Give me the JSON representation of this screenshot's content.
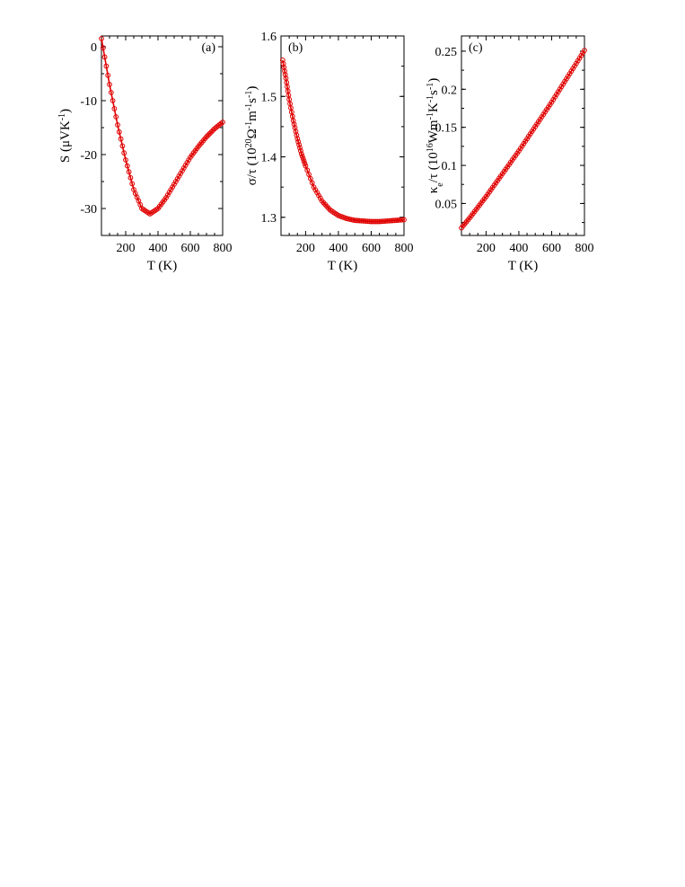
{
  "chart_data": [
    {
      "type": "line",
      "panel_label": "(a)",
      "xlabel": "T (K)",
      "ylabel": {
        "base": "S (μVK",
        "sup": "-1",
        "end": ")"
      },
      "xlim": [
        50,
        800
      ],
      "ylim": [
        -35,
        2
      ],
      "xticks": [
        200,
        400,
        600,
        800
      ],
      "yticks": [
        0,
        -10,
        -20,
        -30
      ],
      "ytick_labels": [
        "0",
        "-10",
        "-20",
        "-30"
      ],
      "series_color": "#e00000",
      "x": [
        50,
        100,
        150,
        200,
        250,
        300,
        350,
        400,
        450,
        500,
        550,
        600,
        650,
        700,
        750,
        800
      ],
      "y": [
        1.5,
        -7.0,
        -14.5,
        -21.0,
        -26.5,
        -30.0,
        -31.0,
        -30.0,
        -28.0,
        -25.5,
        -23.0,
        -20.5,
        -18.5,
        -16.7,
        -15.2,
        -14.0
      ]
    },
    {
      "type": "line",
      "panel_label": "(b)",
      "xlabel": "T (K)",
      "ylabel": {
        "base": "σ/τ (10",
        "sup1": "20",
        "mid": "Ω",
        "sup2": "-1",
        "mid2": "m",
        "sup3": "-1",
        "mid3": "s",
        "sup4": "-1",
        "end": ")"
      },
      "xlim": [
        50,
        800
      ],
      "ylim": [
        1.27,
        1.6
      ],
      "xticks": [
        200,
        400,
        600,
        800
      ],
      "yticks": [
        1.3,
        1.4,
        1.5,
        1.6
      ],
      "ytick_labels": [
        "1.3",
        "1.4",
        "1.5",
        "1.6"
      ],
      "series_color": "#e00000",
      "x": [
        60,
        80,
        100,
        125,
        150,
        175,
        200,
        250,
        300,
        350,
        400,
        450,
        500,
        550,
        600,
        650,
        700,
        750,
        800
      ],
      "y": [
        1.56,
        1.53,
        1.495,
        1.46,
        1.43,
        1.405,
        1.385,
        1.35,
        1.327,
        1.312,
        1.303,
        1.298,
        1.295,
        1.294,
        1.293,
        1.293,
        1.294,
        1.295,
        1.296
      ]
    },
    {
      "type": "line",
      "panel_label": "(c)",
      "xlabel": "T (K)",
      "ylabel": {
        "base": "κ",
        "sub": "e",
        "mid": "/τ (10",
        "sup1": "16",
        "mid2": "Wm",
        "sup2": "-1",
        "mid3": "K",
        "sup3": "-1",
        "mid4": "s",
        "sup4": "-1",
        "end": ")"
      },
      "xlim": [
        50,
        800
      ],
      "ylim": [
        0.008,
        0.27
      ],
      "xticks": [
        200,
        400,
        600,
        800
      ],
      "yticks": [
        0.05,
        0.1,
        0.15,
        0.2,
        0.25
      ],
      "ytick_labels": [
        "0.05",
        "0.1",
        "0.15",
        "0.2",
        "0.25"
      ],
      "series_color": "#e00000",
      "x": [
        50,
        100,
        150,
        200,
        250,
        300,
        350,
        400,
        450,
        500,
        550,
        600,
        650,
        700,
        750,
        800
      ],
      "y": [
        0.018,
        0.031,
        0.045,
        0.059,
        0.074,
        0.089,
        0.104,
        0.119,
        0.135,
        0.151,
        0.167,
        0.183,
        0.2,
        0.217,
        0.234,
        0.251
      ]
    }
  ]
}
